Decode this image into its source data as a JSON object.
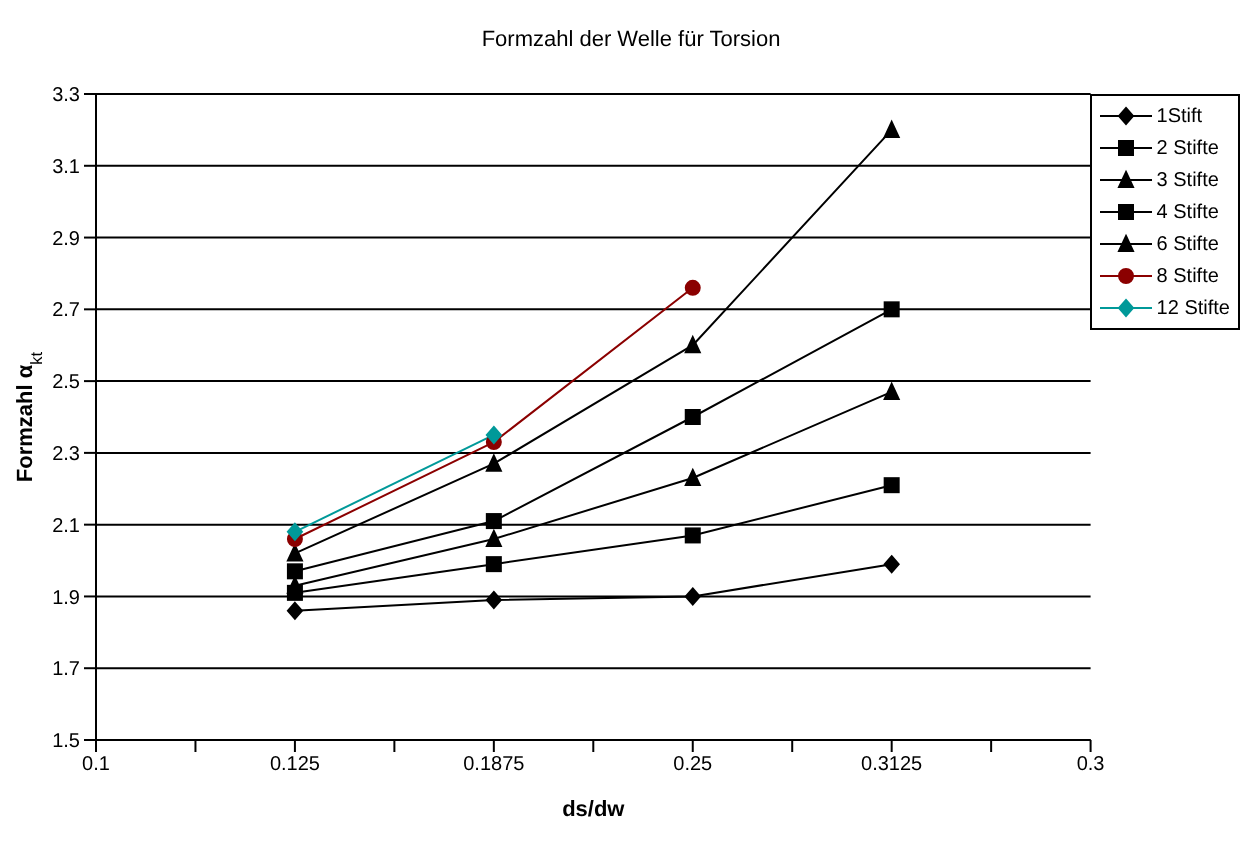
{
  "chart_data": {
    "type": "line",
    "title": "Formzahl der Welle für Torsion",
    "xlabel": "ds/dw",
    "ylabel": "Formzahl α$_{kt}$",
    "categories": [
      "0.1",
      "0.125",
      "0.1875",
      "0.25",
      "0.3125",
      "0.3"
    ],
    "series": [
      {
        "name": "1Stift",
        "color": "#000000",
        "marker": "diamond",
        "values": [
          null,
          1.86,
          1.89,
          1.9,
          1.99,
          null
        ]
      },
      {
        "name": "2 Stifte",
        "color": "#000000",
        "marker": "square",
        "values": [
          null,
          1.91,
          1.99,
          2.07,
          2.21,
          null
        ]
      },
      {
        "name": "3 Stifte",
        "color": "#000000",
        "marker": "triangle",
        "values": [
          null,
          1.93,
          2.06,
          2.23,
          2.47,
          null
        ]
      },
      {
        "name": "4 Stifte",
        "color": "#000000",
        "marker": "square",
        "values": [
          null,
          1.97,
          2.11,
          2.4,
          2.7,
          null
        ]
      },
      {
        "name": "6 Stifte",
        "color": "#000000",
        "marker": "triangle",
        "values": [
          null,
          2.02,
          2.27,
          2.6,
          3.2,
          null
        ]
      },
      {
        "name": "8 Stifte",
        "color": "#8b0000",
        "marker": "circle",
        "values": [
          null,
          2.06,
          2.33,
          2.76,
          null,
          null
        ]
      },
      {
        "name": "12 Stifte",
        "color": "#009999",
        "marker": "diamond",
        "values": [
          null,
          2.08,
          2.35,
          null,
          null,
          null
        ]
      }
    ],
    "ylim": [
      1.5,
      3.3
    ],
    "yticks": [
      1.5,
      1.7,
      1.9,
      2.1,
      2.3,
      2.5,
      2.7,
      2.9,
      3.1,
      3.3
    ],
    "grid": "y",
    "legend": "top right",
    "line_style": "solid"
  }
}
